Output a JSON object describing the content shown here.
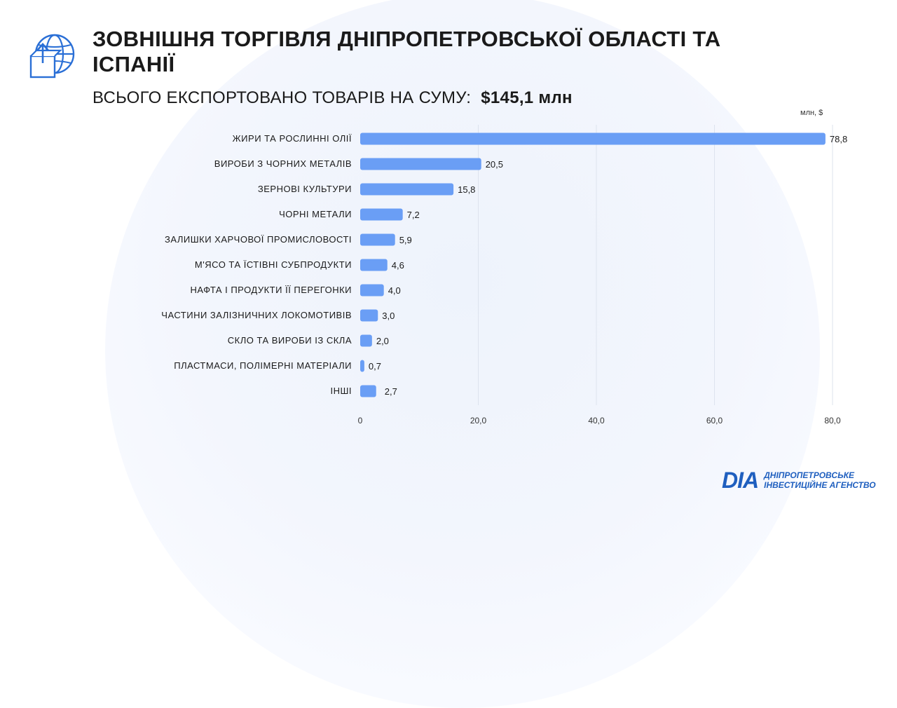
{
  "header": {
    "title": "ЗОВНІШНЯ ТОРГІВЛЯ ДНІПРОПЕТРОВСЬКОЇ ОБЛАСТІ ТА ІСПАНІЇ",
    "subtitle_label": "ВСЬОГО ЕКСПОРТОВАНО ТОВАРІВ НА СУМУ:",
    "subtitle_amount": "$145,1 млн",
    "icon": "globe-export-icon"
  },
  "footer": {
    "logo_mark": "DIA",
    "logo_line1": "ДНІПРОПЕТРОВСЬКЕ",
    "logo_line2": "ІНВЕСТИЦІЙНЕ АГЕНСТВО"
  },
  "chart_data": {
    "type": "bar",
    "orientation": "horizontal",
    "unit_label": "млн, $",
    "categories": [
      "ЖИРИ ТА РОСЛИННІ ОЛІЇ",
      "ВИРОБИ З ЧОРНИХ МЕТАЛІВ",
      "ЗЕРНОВІ КУЛЬТУРИ",
      "ЧОРНІ МЕТАЛИ",
      "ЗАЛИШКИ ХАРЧОВОЇ ПРОМИСЛОВОСТІ",
      "М'ЯСО ТА ЇСТІВНІ СУБПРОДУКТИ",
      "НАФТА І ПРОДУКТИ ЇЇ ПЕРЕГОНКИ",
      "ЧАСТИНИ ЗАЛІЗНИЧНИХ ЛОКОМОТИВІВ",
      "СКЛО ТА ВИРОБИ ІЗ СКЛА",
      "ПЛАСТМАСИ, ПОЛІМЕРНІ МАТЕРІАЛИ",
      "ІНШІ"
    ],
    "values": [
      78.8,
      20.5,
      15.8,
      7.2,
      5.9,
      4.6,
      4.0,
      3.0,
      2.0,
      0.7,
      2.7
    ],
    "value_labels": [
      "78,8",
      "20,5",
      "15,8",
      "7,2",
      "5,9",
      "4,6",
      "4,0",
      "3,0",
      "2,0",
      "0,7",
      "2,7"
    ],
    "x_ticks": [
      0,
      20,
      40,
      60,
      80
    ],
    "x_tick_labels": [
      "0",
      "20,0",
      "40,0",
      "60,0",
      "80,0"
    ],
    "xlim": [
      0,
      80
    ],
    "grid": true,
    "bar_color": "#6a9ef5"
  }
}
